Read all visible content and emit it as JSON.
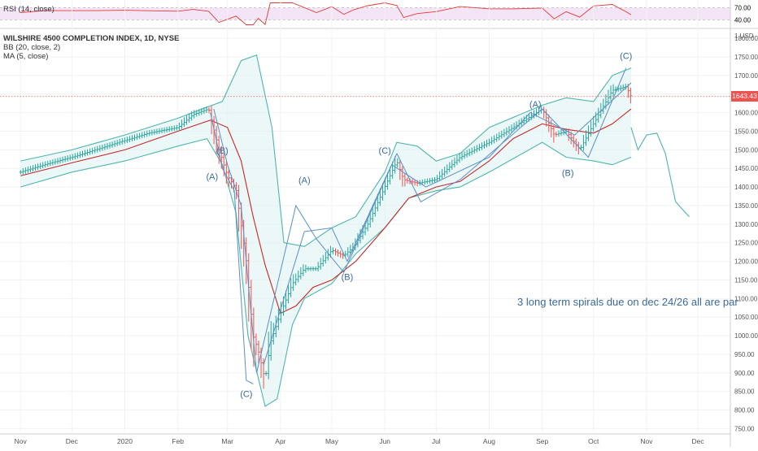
{
  "colors": {
    "rsi_line": "#e53935",
    "rsi_band": "#f3e5f5",
    "bb_band": "#4db6ac",
    "bb_fill": "#e0f2f1",
    "ma_line": "#c62828",
    "wave_line": "#5b8fc7",
    "up_bar": "#26a69a",
    "down_bar": "#ef5350",
    "price_line": "#ef5350",
    "annotation": "#3b6a9a"
  },
  "rsi_panel": {
    "label": "RSI (14, close)",
    "levels": [
      "70.00",
      "40.00"
    ]
  },
  "chart_data": {
    "type": "line",
    "title": "WILSHIRE 4500 COMPLETION INDEX, 1D, NYSE",
    "indicators": [
      "BB (20, close, 2)",
      "MA (5, close)"
    ],
    "x_tick_labels": [
      "Nov",
      "Dec",
      "2020",
      "Feb",
      "Mar",
      "Apr",
      "May",
      "Jun",
      "Jul",
      "Aug",
      "Sep",
      "Oct",
      "Nov",
      "Dec"
    ],
    "y_unit_label": "1 USD",
    "y_tick_labels": [
      "1800.00",
      "1750.00",
      "1700.00",
      "1650.00",
      "1600.00",
      "1550.00",
      "1500.00",
      "1450.00",
      "1400.00",
      "1350.00",
      "1300.00",
      "1250.00",
      "1200.00",
      "1150.00",
      "1100.00",
      "1050.00",
      "1000.00",
      "950.00",
      "900.00",
      "850.00",
      "800.00",
      "750.00"
    ],
    "ylim": [
      740,
      1820
    ],
    "last_price": "1643.43",
    "last_price_value": 1643.43,
    "price_series": {
      "x": [
        "2019-11-01",
        "2019-11-15",
        "2019-12-01",
        "2019-12-15",
        "2020-01-01",
        "2020-01-15",
        "2020-02-01",
        "2020-02-10",
        "2020-02-19",
        "2020-02-25",
        "2020-03-01",
        "2020-03-06",
        "2020-03-12",
        "2020-03-16",
        "2020-03-19",
        "2020-03-23",
        "2020-03-26",
        "2020-04-01",
        "2020-04-08",
        "2020-04-15",
        "2020-04-22",
        "2020-05-01",
        "2020-05-08",
        "2020-05-14",
        "2020-05-22",
        "2020-06-01",
        "2020-06-08",
        "2020-06-12",
        "2020-06-20",
        "2020-07-01",
        "2020-07-15",
        "2020-08-01",
        "2020-08-15",
        "2020-09-01",
        "2020-09-08",
        "2020-09-15",
        "2020-09-23",
        "2020-10-01",
        "2020-10-12",
        "2020-10-20",
        "2020-10-23"
      ],
      "values": [
        1440,
        1460,
        1480,
        1500,
        1525,
        1545,
        1560,
        1595,
        1610,
        1500,
        1430,
        1395,
        1200,
        1000,
        960,
        880,
        980,
        1060,
        1140,
        1180,
        1180,
        1230,
        1215,
        1240,
        1300,
        1400,
        1470,
        1420,
        1410,
        1420,
        1480,
        1520,
        1560,
        1610,
        1540,
        1550,
        1500,
        1570,
        1660,
        1670,
        1643.43
      ]
    },
    "bb_upper": {
      "x": [
        "2019-11-01",
        "2019-12-01",
        "2020-01-01",
        "2020-02-01",
        "2020-02-18",
        "2020-02-27",
        "2020-03-09",
        "2020-03-18",
        "2020-03-27",
        "2020-04-03",
        "2020-04-15",
        "2020-05-01",
        "2020-05-15",
        "2020-06-01",
        "2020-06-08",
        "2020-06-20",
        "2020-07-01",
        "2020-07-15",
        "2020-08-01",
        "2020-09-01",
        "2020-09-15",
        "2020-10-01",
        "2020-10-12",
        "2020-10-23"
      ],
      "values": [
        1470,
        1500,
        1540,
        1585,
        1615,
        1630,
        1740,
        1755,
        1560,
        1250,
        1240,
        1290,
        1320,
        1440,
        1520,
        1510,
        1470,
        1490,
        1560,
        1620,
        1640,
        1630,
        1700,
        1720
      ]
    },
    "bb_lower": {
      "x": [
        "2019-11-01",
        "2019-12-01",
        "2020-01-01",
        "2020-02-01",
        "2020-02-18",
        "2020-02-27",
        "2020-03-06",
        "2020-03-13",
        "2020-03-23",
        "2020-03-30",
        "2020-04-08",
        "2020-04-15",
        "2020-05-01",
        "2020-05-15",
        "2020-06-01",
        "2020-06-15",
        "2020-07-01",
        "2020-07-15",
        "2020-08-01",
        "2020-09-01",
        "2020-09-15",
        "2020-10-01",
        "2020-10-12",
        "2020-10-23"
      ],
      "values": [
        1400,
        1440,
        1470,
        1510,
        1530,
        1460,
        1330,
        1000,
        810,
        830,
        1030,
        1100,
        1140,
        1220,
        1290,
        1370,
        1390,
        1400,
        1440,
        1520,
        1480,
        1470,
        1460,
        1480
      ]
    },
    "ma": {
      "x": [
        "2019-11-01",
        "2019-12-01",
        "2020-01-01",
        "2020-02-01",
        "2020-02-20",
        "2020-03-01",
        "2020-03-09",
        "2020-03-16",
        "2020-03-23",
        "2020-04-01",
        "2020-04-10",
        "2020-04-20",
        "2020-05-01",
        "2020-05-15",
        "2020-06-01",
        "2020-06-15",
        "2020-07-01",
        "2020-07-15",
        "2020-08-01",
        "2020-08-15",
        "2020-09-01",
        "2020-09-15",
        "2020-10-01",
        "2020-10-12",
        "2020-10-23"
      ],
      "values": [
        1430,
        1465,
        1500,
        1550,
        1580,
        1560,
        1470,
        1320,
        1190,
        1060,
        1080,
        1130,
        1150,
        1200,
        1290,
        1370,
        1400,
        1415,
        1470,
        1530,
        1570,
        1555,
        1545,
        1570,
        1610
      ]
    },
    "bb_projection": {
      "x": [
        "2020-10-23",
        "2020-10-27",
        "2020-11-01",
        "2020-11-07",
        "2020-11-12",
        "2020-11-18",
        "2020-11-26"
      ],
      "values": [
        1560,
        1500,
        1540,
        1545,
        1490,
        1360,
        1320
      ]
    },
    "wave_lines": [
      {
        "x": [
          "2020-02-20",
          "2020-02-27",
          "2020-03-05",
          "2020-03-12",
          "2020-03-16"
        ],
        "values": [
          1600,
          1450,
          1390,
          880,
          870
        ]
      },
      {
        "x": [
          "2020-02-22",
          "2020-03-01",
          "2020-03-09",
          "2020-03-18"
        ],
        "values": [
          1610,
          1460,
          1350,
          900
        ]
      },
      {
        "x": [
          "2020-03-18",
          "2020-04-10",
          "2020-04-22",
          "2020-05-08",
          "2020-06-08"
        ],
        "values": [
          900,
          1350,
          1260,
          1170,
          1490
        ]
      },
      {
        "x": [
          "2020-03-22",
          "2020-04-15",
          "2020-05-01",
          "2020-05-10",
          "2020-06-05"
        ],
        "values": [
          920,
          1280,
          1290,
          1200,
          1460
        ]
      },
      {
        "x": [
          "2020-06-08",
          "2020-06-22",
          "2020-07-15",
          "2020-09-01",
          "2020-09-28",
          "2020-10-20"
        ],
        "values": [
          1490,
          1360,
          1420,
          1610,
          1480,
          1720
        ]
      },
      {
        "x": [
          "2020-06-05",
          "2020-06-25",
          "2020-08-01",
          "2020-08-25",
          "2020-09-20",
          "2020-10-23"
        ],
        "values": [
          1460,
          1400,
          1480,
          1600,
          1540,
          1680
        ]
      }
    ],
    "wave_labels": [
      {
        "text": "(B)",
        "x": "2020-02-27",
        "y": 1490
      },
      {
        "text": "(A)",
        "x": "2020-02-21",
        "y": 1420
      },
      {
        "text": "(C)",
        "x": "2020-03-12",
        "y": 835
      },
      {
        "text": "(A)",
        "x": "2020-04-15",
        "y": 1410
      },
      {
        "text": "(B)",
        "x": "2020-05-10",
        "y": 1150
      },
      {
        "text": "(C)",
        "x": "2020-06-01",
        "y": 1490
      },
      {
        "text": "(A)",
        "x": "2020-08-28",
        "y": 1615
      },
      {
        "text": "(B)",
        "x": "2020-09-16",
        "y": 1430
      },
      {
        "text": "(C)",
        "x": "2020-10-20",
        "y": 1745
      }
    ],
    "annotations": [
      "3 long term spirals due on dec 24/26  all are par"
    ]
  }
}
